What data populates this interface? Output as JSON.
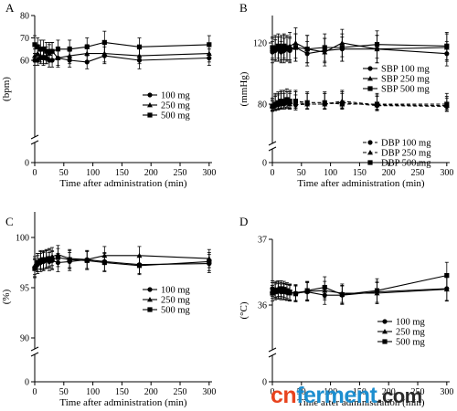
{
  "chart_data": [
    {
      "panel": "A",
      "type": "line",
      "xlabel": "Time after administration (min)",
      "ylabel": "(bpm)",
      "xlim": [
        0,
        305
      ],
      "ylim": [
        0,
        80
      ],
      "axis_break": true,
      "xticks": [
        "0",
        "50",
        "100",
        "150",
        "200",
        "250",
        "300"
      ],
      "yticks": [
        "0",
        "60",
        "70",
        "80"
      ],
      "legend_position": "center-right",
      "x": [
        0,
        5,
        10,
        15,
        20,
        25,
        30,
        40,
        60,
        90,
        120,
        180,
        300
      ],
      "series": [
        {
          "name": "100 mg",
          "marker": "circle",
          "dash": "solid",
          "values": [
            60,
            60,
            61,
            61,
            61,
            60,
            60,
            61,
            60,
            59,
            62,
            60,
            61
          ],
          "error": [
            3,
            3,
            3,
            4,
            3,
            4,
            4,
            5,
            4,
            4,
            4,
            5,
            4
          ]
        },
        {
          "name": "250 mg",
          "marker": "triangle",
          "dash": "solid",
          "values": [
            62,
            63,
            62,
            62,
            62,
            63,
            64,
            61,
            62,
            63,
            63,
            62,
            63
          ],
          "error": [
            3,
            4,
            3,
            4,
            4,
            4,
            4,
            4,
            4,
            4,
            4,
            4,
            4
          ]
        },
        {
          "name": "500 mg",
          "marker": "square",
          "dash": "solid",
          "values": [
            67,
            66,
            65,
            65,
            64,
            64,
            64,
            65,
            65,
            66,
            68,
            66,
            67
          ],
          "error": [
            4,
            4,
            4,
            4,
            4,
            4,
            4,
            4,
            4,
            4,
            5,
            4,
            4
          ]
        }
      ]
    },
    {
      "panel": "B",
      "type": "line",
      "xlabel": "Time after administration (min)",
      "ylabel": "(mmHg)",
      "xlim": [
        0,
        305
      ],
      "ylim": [
        0,
        140
      ],
      "axis_break": true,
      "xticks": [
        "0",
        "50",
        "100",
        "150",
        "200",
        "250",
        "300"
      ],
      "yticks": [
        "0",
        "80",
        "120"
      ],
      "legend_position": "center-right",
      "x": [
        0,
        5,
        10,
        15,
        20,
        25,
        30,
        40,
        60,
        90,
        120,
        180,
        300
      ],
      "series": [
        {
          "name": "SBP 100 mg",
          "marker": "circle",
          "dash": "solid",
          "values": [
            114,
            115,
            116,
            114,
            115,
            116,
            115,
            117,
            113,
            115,
            116,
            116,
            113
          ],
          "error": [
            7,
            7,
            8,
            7,
            8,
            8,
            8,
            9,
            8,
            8,
            8,
            9,
            8
          ]
        },
        {
          "name": "SBP 250 mg",
          "marker": "triangle",
          "dash": "solid",
          "values": [
            116,
            117,
            116,
            116,
            117,
            116,
            118,
            120,
            116,
            114,
            120,
            116,
            117
          ],
          "error": [
            7,
            8,
            8,
            8,
            8,
            8,
            9,
            10,
            9,
            9,
            9,
            9,
            9
          ]
        },
        {
          "name": "SBP 500 mg",
          "marker": "square",
          "dash": "solid",
          "values": [
            117,
            116,
            118,
            117,
            118,
            117,
            116,
            117,
            116,
            117,
            117,
            119,
            118
          ],
          "error": [
            7,
            8,
            8,
            8,
            8,
            8,
            8,
            9,
            9,
            9,
            9,
            9,
            9
          ]
        },
        {
          "name": "DBP 100 mg",
          "marker": "circle",
          "dash": "dashed",
          "values": [
            76,
            78,
            79,
            80,
            80,
            81,
            81,
            79,
            80,
            80,
            81,
            78,
            77
          ],
          "error": [
            6,
            7,
            7,
            7,
            7,
            7,
            7,
            7,
            7,
            7,
            7,
            7,
            7
          ]
        },
        {
          "name": "DBP 250 mg",
          "marker": "triangle",
          "dash": "dashed",
          "values": [
            78,
            79,
            80,
            81,
            82,
            81,
            80,
            81,
            80,
            80,
            82,
            79,
            78
          ],
          "error": [
            6,
            7,
            7,
            7,
            7,
            7,
            7,
            7,
            7,
            7,
            7,
            7,
            7
          ]
        },
        {
          "name": "DBP 500 mg",
          "marker": "square",
          "dash": "dashed",
          "values": [
            77,
            80,
            81,
            82,
            82,
            83,
            82,
            82,
            81,
            81,
            80,
            80,
            80
          ],
          "error": [
            6,
            7,
            7,
            7,
            7,
            7,
            7,
            7,
            7,
            7,
            7,
            7,
            7
          ]
        }
      ]
    },
    {
      "panel": "C",
      "type": "line",
      "xlabel": "Time after administration (min)",
      "ylabel": "(%)",
      "xlim": [
        0,
        305
      ],
      "ylim": [
        0,
        100
      ],
      "axis_break": true,
      "xticks": [
        "0",
        "50",
        "100",
        "150",
        "200",
        "250",
        "300"
      ],
      "yticks": [
        "0",
        "90",
        "95",
        "100"
      ],
      "legend_position": "center-right",
      "x": [
        0,
        5,
        10,
        15,
        20,
        25,
        30,
        40,
        60,
        90,
        120,
        180,
        300
      ],
      "series": [
        {
          "name": "100 mg",
          "marker": "circle",
          "dash": "solid",
          "values": [
            97.0,
            97.3,
            97.5,
            97.6,
            97.8,
            97.6,
            97.7,
            97.5,
            97.6,
            97.8,
            97.6,
            97.3,
            97.4
          ],
          "error": [
            0.9,
            0.9,
            0.9,
            0.9,
            0.9,
            0.9,
            0.9,
            0.9,
            0.9,
            0.9,
            0.9,
            0.9,
            0.9
          ]
        },
        {
          "name": "250 mg",
          "marker": "triangle",
          "dash": "solid",
          "values": [
            97.2,
            97.5,
            97.8,
            97.7,
            97.9,
            98.0,
            98.1,
            98.3,
            97.9,
            97.8,
            98.2,
            98.2,
            97.9
          ],
          "error": [
            0.9,
            0.9,
            0.9,
            0.9,
            0.9,
            0.9,
            0.9,
            0.9,
            0.9,
            0.9,
            0.9,
            0.9,
            0.9
          ]
        },
        {
          "name": "500 mg",
          "marker": "square",
          "dash": "solid",
          "values": [
            96.9,
            97.5,
            97.7,
            97.8,
            97.8,
            97.9,
            97.8,
            98.0,
            97.8,
            97.7,
            97.5,
            97.2,
            97.6
          ],
          "error": [
            0.9,
            0.9,
            0.9,
            0.9,
            0.9,
            0.9,
            0.9,
            0.9,
            0.9,
            0.9,
            0.9,
            0.9,
            0.9
          ]
        }
      ]
    },
    {
      "panel": "D",
      "type": "line",
      "xlabel": "Time after administration (min)",
      "ylabel": "(°C)",
      "xlim": [
        0,
        305
      ],
      "ylim": [
        0,
        37
      ],
      "axis_break": true,
      "xticks": [
        "0",
        "50",
        "100",
        "150",
        "200",
        "250",
        "300"
      ],
      "yticks": [
        "0",
        "36",
        "37"
      ],
      "legend_position": "bottom-right",
      "x": [
        0,
        5,
        10,
        15,
        20,
        25,
        30,
        40,
        60,
        90,
        120,
        180,
        300
      ],
      "series": [
        {
          "name": "100 mg",
          "marker": "circle",
          "dash": "solid",
          "values": [
            36.25,
            36.22,
            36.21,
            36.2,
            36.2,
            36.19,
            36.19,
            36.18,
            36.2,
            36.15,
            36.15,
            36.2,
            36.25
          ],
          "error": [
            0.12,
            0.12,
            0.12,
            0.12,
            0.12,
            0.12,
            0.12,
            0.12,
            0.14,
            0.14,
            0.14,
            0.16,
            0.18
          ]
        },
        {
          "name": "250 mg",
          "marker": "triangle",
          "dash": "solid",
          "values": [
            36.22,
            36.24,
            36.25,
            36.22,
            36.21,
            36.2,
            36.18,
            36.19,
            36.21,
            36.22,
            36.18,
            36.18,
            36.24
          ],
          "error": [
            0.12,
            0.12,
            0.12,
            0.12,
            0.12,
            0.12,
            0.12,
            0.12,
            0.14,
            0.14,
            0.14,
            0.16,
            0.18
          ]
        },
        {
          "name": "500 mg",
          "marker": "square",
          "dash": "solid",
          "values": [
            36.18,
            36.2,
            36.23,
            36.25,
            36.24,
            36.22,
            36.2,
            36.17,
            36.22,
            36.27,
            36.16,
            36.22,
            36.45
          ],
          "error": [
            0.12,
            0.12,
            0.12,
            0.12,
            0.12,
            0.12,
            0.12,
            0.12,
            0.14,
            0.16,
            0.14,
            0.18,
            0.2
          ]
        }
      ]
    }
  ],
  "watermark": {
    "part_a": "cn",
    "part_b": "ferment",
    "part_c": ".com"
  }
}
